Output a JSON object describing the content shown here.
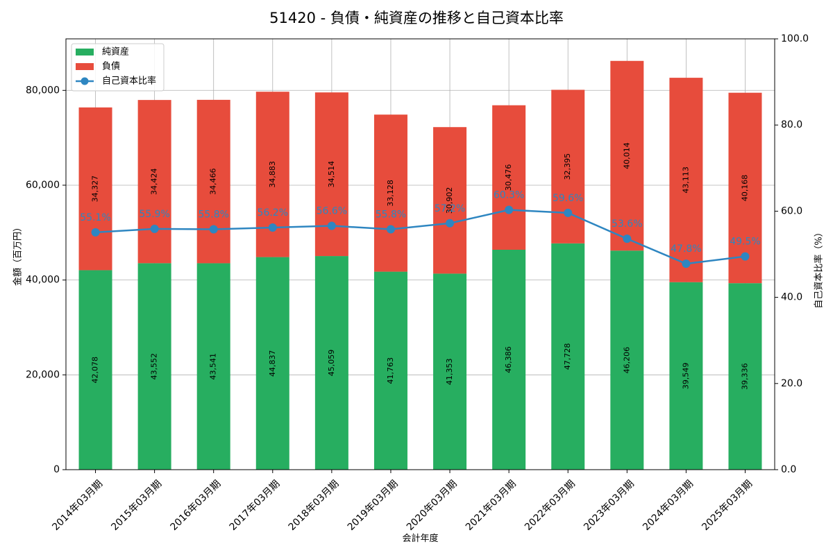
{
  "chart_data": {
    "type": "bar",
    "title": "51420 - 負債・純資産の推移と自己資本比率",
    "xlabel": "会計年度",
    "ylabel": "金額（百万円）",
    "y2label": "自己資本比率（%）",
    "ylim": [
      0,
      90870
    ],
    "y2lim": [
      0,
      100
    ],
    "yticks": [
      "0",
      "20,000",
      "40,000",
      "60,000",
      "80,000"
    ],
    "y2ticks": [
      "0.0",
      "20.0",
      "40.0",
      "60.0",
      "80.0",
      "100.0"
    ],
    "grid": true,
    "legend_position": "top-left",
    "categories": [
      "2014年03月期",
      "2015年03月期",
      "2016年03月期",
      "2017年03月期",
      "2018年03月期",
      "2019年03月期",
      "2020年03月期",
      "2021年03月期",
      "2022年03月期",
      "2023年03月期",
      "2024年03月期",
      "2025年03月期"
    ],
    "series": [
      {
        "name": "純資産",
        "kind": "bar",
        "color": "#27ae60",
        "values": [
          42078,
          43552,
          43541,
          44837,
          45059,
          41763,
          41353,
          46386,
          47728,
          46206,
          39549,
          39336
        ],
        "labels": [
          "42,078",
          "43,552",
          "43,541",
          "44,837",
          "45,059",
          "41,763",
          "41,353",
          "46,386",
          "47,728",
          "46,206",
          "39,549",
          "39,336"
        ]
      },
      {
        "name": "負債",
        "kind": "bar",
        "color": "#e74c3c",
        "values": [
          34327,
          34424,
          34466,
          34883,
          34514,
          33128,
          30902,
          30476,
          32395,
          40014,
          43113,
          40168
        ],
        "labels": [
          "34,327",
          "34,424",
          "34,466",
          "34,883",
          "34,514",
          "33,128",
          "30,902",
          "30,476",
          "32,395",
          "40,014",
          "43,113",
          "40,168"
        ]
      },
      {
        "name": "自己資本比率",
        "kind": "line",
        "color": "#2e86c1",
        "values": [
          55.1,
          55.9,
          55.8,
          56.2,
          56.6,
          55.8,
          57.2,
          60.3,
          59.6,
          53.6,
          47.8,
          49.5
        ],
        "labels": [
          "55.1%",
          "55.9%",
          "55.8%",
          "56.2%",
          "56.6%",
          "55.8%",
          "57.2%",
          "60.3%",
          "59.6%",
          "53.6%",
          "47.8%",
          "49.5%"
        ]
      }
    ]
  }
}
